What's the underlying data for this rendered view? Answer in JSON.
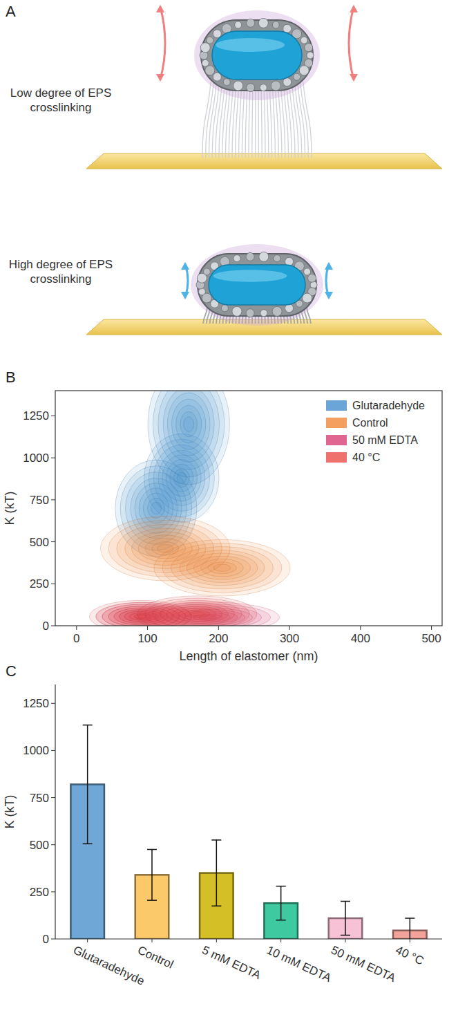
{
  "diagram": {
    "panel": "A",
    "captions": [
      "Low degree of EPS crosslinking",
      "High degree of EPS crosslinking"
    ]
  },
  "chart_data": [
    {
      "type": "density",
      "panel": "B",
      "xlabel": "Length of elastomer (nm)",
      "ylabel": "K (kT)",
      "xlim": [
        -30,
        515
      ],
      "ylim": [
        0,
        1400
      ],
      "xticks": [
        0,
        100,
        200,
        300,
        400,
        500
      ],
      "yticks": [
        0,
        250,
        500,
        750,
        1000,
        1250
      ],
      "legend": "upper right",
      "grid": false,
      "series": [
        {
          "name": "Glutaradehyde",
          "color": "#3a86c8",
          "peaks": [
            {
              "x": 148,
              "y": 880,
              "sx": 22,
              "sy": 110
            },
            {
              "x": 112,
              "y": 700,
              "sx": 24,
              "sy": 120
            },
            {
              "x": 158,
              "y": 1200,
              "sx": 24,
              "sy": 150
            }
          ]
        },
        {
          "name": "Control",
          "color": "#f07f2a",
          "peaks": [
            {
              "x": 205,
              "y": 345,
              "sx": 40,
              "sy": 70
            },
            {
              "x": 125,
              "y": 460,
              "sx": 38,
              "sy": 80
            }
          ]
        },
        {
          "name": "50 mM EDTA",
          "color": "#d6336c",
          "peaks": [
            {
              "x": 185,
              "y": 50,
              "sx": 42,
              "sy": 38
            },
            {
              "x": 95,
              "y": 55,
              "sx": 28,
              "sy": 35
            }
          ]
        },
        {
          "name": "40 °C",
          "color": "#e8413c",
          "peaks": [
            {
              "x": 90,
              "y": 55,
              "sx": 30,
              "sy": 40
            },
            {
              "x": 170,
              "y": 70,
              "sx": 35,
              "sy": 45
            }
          ]
        }
      ]
    },
    {
      "type": "bar",
      "panel": "C",
      "ylabel": "K (kT)",
      "categories": [
        "Glutaradehyde",
        "Control",
        "5 mM EDTA",
        "10 mM EDTA",
        "50 mM EDTA",
        "40 °C"
      ],
      "values": [
        820,
        340,
        350,
        190,
        110,
        45
      ],
      "errors": [
        315,
        135,
        175,
        90,
        90,
        65
      ],
      "colors": [
        "#6fa8d6",
        "#fcc96a",
        "#d4c026",
        "#3ec9a0",
        "#f7c2d6",
        "#f4a39a"
      ],
      "ylim": [
        0,
        1350
      ],
      "yticks": [
        0,
        250,
        500,
        750,
        1000,
        1250
      ],
      "grid": false
    }
  ]
}
